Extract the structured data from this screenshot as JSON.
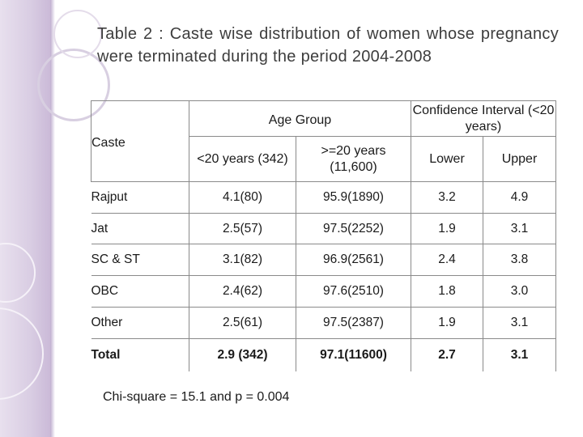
{
  "title": "Table 2 : Caste wise distribution of women whose pregnancy were terminated during the period 2004-2008",
  "table": {
    "caste_header": "Caste",
    "age_group_header": "Age Group",
    "ci_header": "Confidence Interval (<20 years)",
    "col_lt20": "<20 years (342)",
    "col_ge20": ">=20 years (11,600)",
    "col_lower": "Lower",
    "col_upper": "Upper",
    "rows": [
      {
        "caste": "Rajput",
        "lt20": "4.1(80)",
        "ge20": "95.9(1890)",
        "lower": "3.2",
        "upper": "4.9"
      },
      {
        "caste": "Jat",
        "lt20": "2.5(57)",
        "ge20": "97.5(2252)",
        "lower": "1.9",
        "upper": "3.1"
      },
      {
        "caste": "SC & ST",
        "lt20": "3.1(82)",
        "ge20": "96.9(2561)",
        "lower": "2.4",
        "upper": "3.8"
      },
      {
        "caste": "OBC",
        "lt20": "2.4(62)",
        "ge20": "97.6(2510)",
        "lower": "1.8",
        "upper": "3.0"
      },
      {
        "caste": "Other",
        "lt20": "2.5(61)",
        "ge20": "97.5(2387)",
        "lower": "1.9",
        "upper": "3.1"
      }
    ],
    "total": {
      "caste": "Total",
      "lt20": "2.9 (342)",
      "ge20": "97.1(11600)",
      "lower": "2.7",
      "upper": "3.1"
    }
  },
  "footnote": "Chi-square = 15.1 and p = 0.004"
}
